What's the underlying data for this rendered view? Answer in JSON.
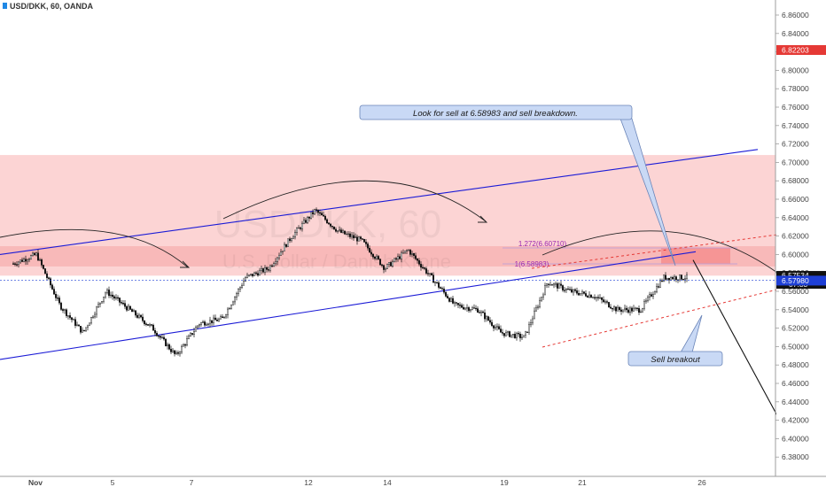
{
  "header": {
    "symbol_label": "USD/DKK, 60, OANDA"
  },
  "watermark": {
    "symbol": "USDDKK, 60",
    "description": "U.S. Dollar / Danish Krone"
  },
  "colors": {
    "zone_fill": "#fbc9c9",
    "trend_line": "#1b1bd6",
    "candle": "#111111",
    "price_label_red": "#e53935",
    "price_label_blue": "#1e3fd6",
    "fib": "#9c27b0"
  },
  "annotations": {
    "sell_note": "Look for sell at 6.58983 and sell breakdown.",
    "breakout_note": "Sell breakout",
    "fib_1272": "1.272(6.60710)",
    "fib_1": "1(6.58983)"
  },
  "price_labels": {
    "red": "6.82203",
    "current": "6.57534",
    "countdown": "07:33",
    "blue": "6.57980"
  },
  "chart_data": {
    "type": "candlestick",
    "title": "USD/DKK, 60, OANDA",
    "yticks": [
      6.86,
      6.84,
      6.82,
      6.8,
      6.78,
      6.76,
      6.74,
      6.72,
      6.7,
      6.68,
      6.66,
      6.64,
      6.62,
      6.6,
      6.58,
      6.56,
      6.54,
      6.52,
      6.5,
      6.48,
      6.46,
      6.44,
      6.42,
      6.4,
      6.38,
      6.36
    ],
    "ylim": [
      6.36,
      6.87
    ],
    "xticks": [
      "Nov",
      "5",
      "7",
      "12",
      "14",
      "19",
      "21",
      "26"
    ],
    "price_path": [
      {
        "label": "Nov 1",
        "close": 6.59
      },
      {
        "label": "Nov 2",
        "close": 6.6
      },
      {
        "label": "Nov 5",
        "close": 6.545
      },
      {
        "label": "Nov 5",
        "close": 6.515
      },
      {
        "label": "Nov 6",
        "close": 6.56
      },
      {
        "label": "Nov 6",
        "close": 6.54
      },
      {
        "label": "Nov 7",
        "close": 6.52
      },
      {
        "label": "Nov 8",
        "close": 6.49
      },
      {
        "label": "Nov 8",
        "close": 6.525
      },
      {
        "label": "Nov 9",
        "close": 6.53
      },
      {
        "label": "Nov 9",
        "close": 6.575
      },
      {
        "label": "Nov 12",
        "close": 6.585
      },
      {
        "label": "Nov 12",
        "close": 6.62
      },
      {
        "label": "Nov 13",
        "close": 6.648
      },
      {
        "label": "Nov 13",
        "close": 6.625
      },
      {
        "label": "Nov 14",
        "close": 6.615
      },
      {
        "label": "Nov 15",
        "close": 6.585
      },
      {
        "label": "Nov 16",
        "close": 6.605
      },
      {
        "label": "Nov 16",
        "close": 6.575
      },
      {
        "label": "Nov 19",
        "close": 6.545
      },
      {
        "label": "Nov 19",
        "close": 6.54
      },
      {
        "label": "Nov 20",
        "close": 6.515
      },
      {
        "label": "Nov 20",
        "close": 6.51
      },
      {
        "label": "Nov 21",
        "close": 6.57
      },
      {
        "label": "Nov 21",
        "close": 6.56
      },
      {
        "label": "Nov 22",
        "close": 6.555
      },
      {
        "label": "Nov 23",
        "close": 6.54
      },
      {
        "label": "Nov 23",
        "close": 6.54
      },
      {
        "label": "Nov 24",
        "close": 6.575
      },
      {
        "label": "Nov 24",
        "close": 6.575
      }
    ],
    "horizontal_zones": [
      {
        "name": "wide resistance zone",
        "top": 6.708,
        "bottom": 6.577
      },
      {
        "name": "inner zone",
        "top": 6.609,
        "bottom": 6.587
      },
      {
        "name": "sell zone",
        "top": 6.607,
        "bottom": 6.59
      }
    ],
    "trend_channel": {
      "upper": [
        {
          "x": "Nov 1",
          "y": 6.6
        },
        {
          "x": "Nov 26+",
          "y": 6.714
        }
      ],
      "lower": [
        {
          "x": "Nov 1",
          "y": 6.486
        },
        {
          "x": "Nov 26",
          "y": 6.603
        }
      ]
    },
    "projection": {
      "from": {
        "x": "Nov 24",
        "y": 6.594
      },
      "to": {
        "x": "Nov 27",
        "y": 6.425
      }
    },
    "fib_levels": [
      {
        "ratio": 1.272,
        "price": 6.6071
      },
      {
        "ratio": 1,
        "price": 6.58983
      }
    ]
  }
}
